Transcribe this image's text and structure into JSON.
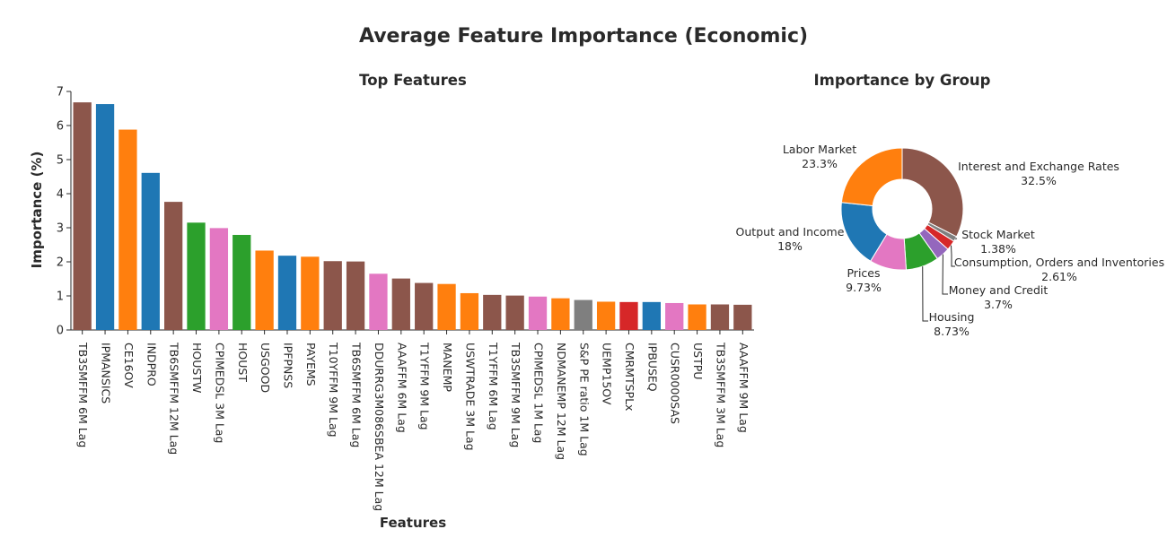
{
  "title": "Average Feature Importance (Economic)",
  "colors": {
    "Interest and Exchange Rates": "#8c564b",
    "Output and Income": "#1f77b4",
    "Labor Market": "#ff7f0e",
    "Housing": "#2ca02c",
    "Prices": "#e377c2",
    "Stock Market": "#7f7f7f",
    "Consumption, Orders and Inventories": "#d62728",
    "Money and Credit": "#9467bd"
  },
  "chart_data": [
    {
      "type": "bar",
      "title": "Top Features",
      "xlabel": "Features",
      "ylabel": "Importance (%)",
      "ylim": [
        0,
        7
      ],
      "yticks": [
        0,
        1,
        2,
        3,
        4,
        5,
        6,
        7
      ],
      "categories": [
        "TB3SMFFM 6M Lag",
        "IPMANSICS",
        "CE16OV",
        "INDPRO",
        "TB6SMFFM 12M Lag",
        "HOUSTW",
        "CPIMEDSL 3M Lag",
        "HOUST",
        "USGOOD",
        "IPFPNSS",
        "PAYEMS",
        "T10YFFM 9M Lag",
        "TB6SMFFM 6M Lag",
        "DDURRG3M086SBEA 12M Lag",
        "AAAFFM 6M Lag",
        "T1YFFM 9M Lag",
        "MANEMP",
        "USWTRADE 3M Lag",
        "T1YFFM 6M Lag",
        "TB3SMFFM 9M Lag",
        "CPIMEDSL 1M Lag",
        "NDMANEMP 12M Lag",
        "S&P PE ratio 1M Lag",
        "UEMP15OV",
        "CMRMTSPLx",
        "IPBUSEQ",
        "CUSR0000SAS",
        "USTPU",
        "TB3SMFFM 3M Lag",
        "AAAFFM 9M Lag"
      ],
      "values": [
        6.68,
        6.63,
        5.88,
        4.61,
        3.76,
        3.15,
        2.99,
        2.79,
        2.33,
        2.18,
        2.15,
        2.02,
        2.01,
        1.65,
        1.51,
        1.38,
        1.35,
        1.08,
        1.03,
        1.01,
        0.98,
        0.93,
        0.88,
        0.83,
        0.82,
        0.82,
        0.79,
        0.75,
        0.75,
        0.74
      ],
      "groups": [
        "Interest and Exchange Rates",
        "Output and Income",
        "Labor Market",
        "Output and Income",
        "Interest and Exchange Rates",
        "Housing",
        "Prices",
        "Housing",
        "Labor Market",
        "Output and Income",
        "Labor Market",
        "Interest and Exchange Rates",
        "Interest and Exchange Rates",
        "Prices",
        "Interest and Exchange Rates",
        "Interest and Exchange Rates",
        "Labor Market",
        "Labor Market",
        "Interest and Exchange Rates",
        "Interest and Exchange Rates",
        "Prices",
        "Labor Market",
        "Stock Market",
        "Labor Market",
        "Consumption, Orders and Inventories",
        "Output and Income",
        "Prices",
        "Labor Market",
        "Interest and Exchange Rates",
        "Interest and Exchange Rates"
      ]
    },
    {
      "type": "pie",
      "title": "Importance by Group",
      "hole": true,
      "slices": [
        {
          "label": "Interest and Exchange Rates",
          "value": 32.5,
          "text": "32.5%"
        },
        {
          "label": "Stock Market",
          "value": 1.38,
          "text": "1.38%"
        },
        {
          "label": "Consumption, Orders and Inventories",
          "value": 2.61,
          "text": "2.61%"
        },
        {
          "label": "Money and Credit",
          "value": 3.7,
          "text": "3.7%"
        },
        {
          "label": "Housing",
          "value": 8.73,
          "text": "8.73%"
        },
        {
          "label": "Prices",
          "value": 9.73,
          "text": "9.73%"
        },
        {
          "label": "Output and Income",
          "value": 18,
          "text": "18%"
        },
        {
          "label": "Labor Market",
          "value": 23.3,
          "text": "23.3%"
        }
      ]
    }
  ]
}
